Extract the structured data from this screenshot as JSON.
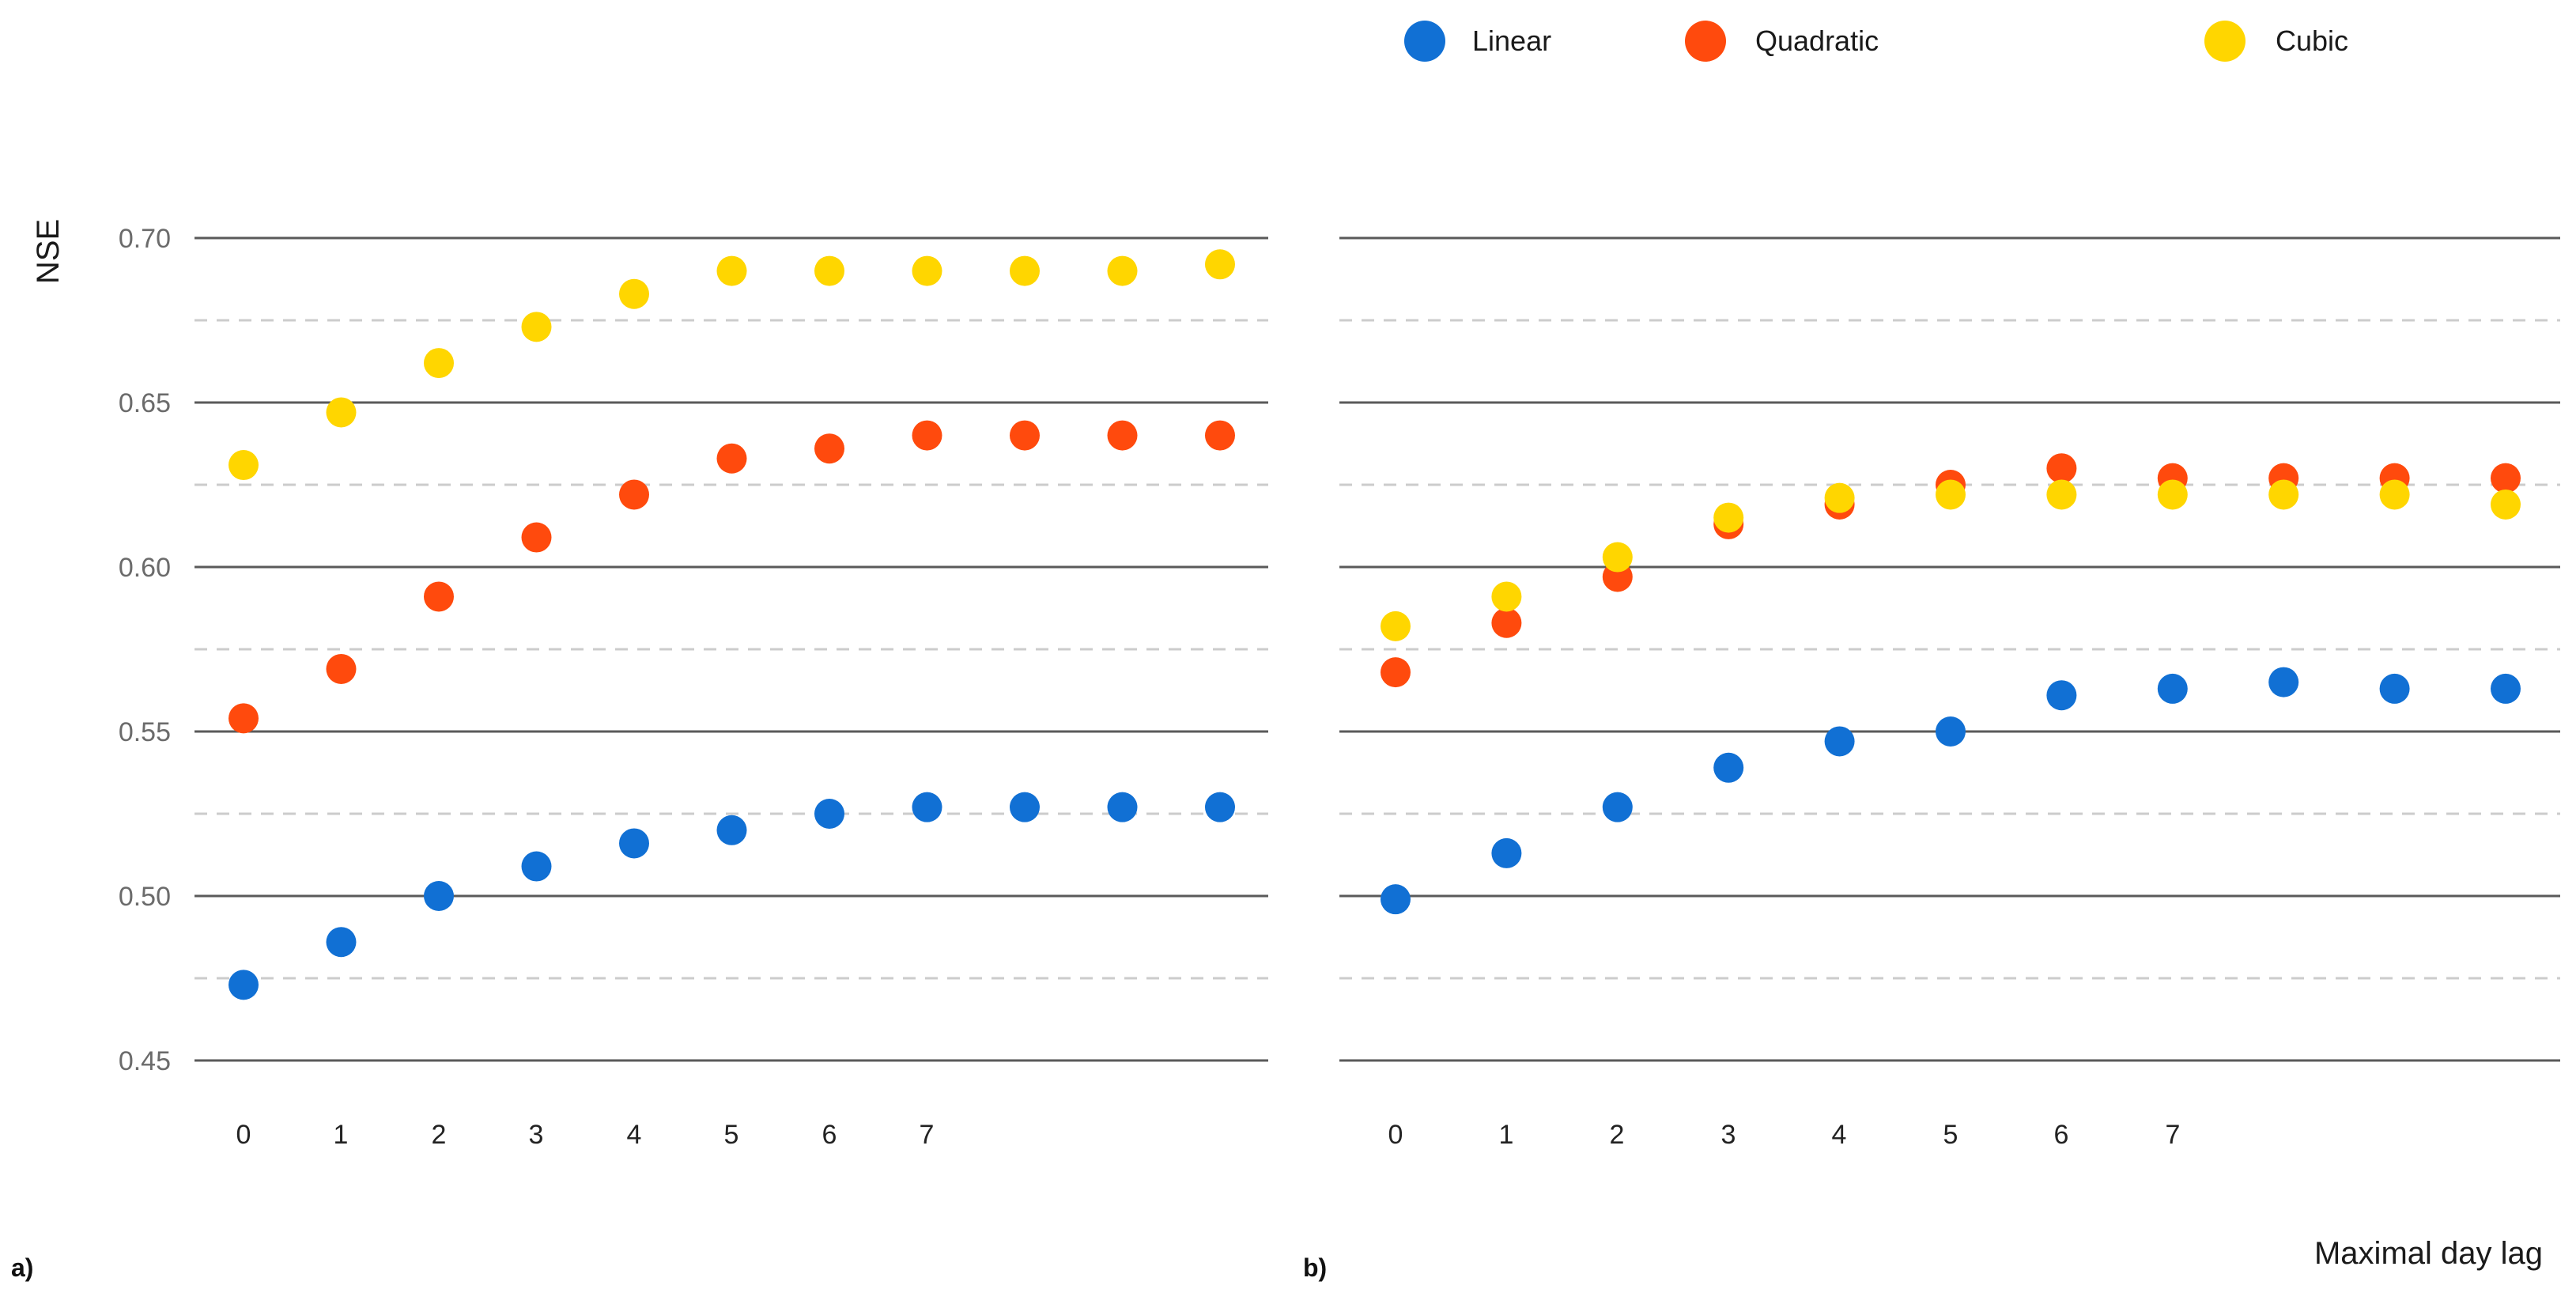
{
  "chart_data": {
    "type": "scatter",
    "ylabel": "NSE",
    "xlabel": "Maximal day lag",
    "ylim": [
      0.45,
      0.7
    ],
    "yticks": [
      "0.70",
      "0.65",
      "0.60",
      "0.55",
      "0.50",
      "0.45"
    ],
    "x_tick_labels": [
      "0",
      "1",
      "2",
      "3",
      "4",
      "5",
      "6",
      "7"
    ],
    "legend": [
      {
        "name": "Linear",
        "color": "#1170D4"
      },
      {
        "name": "Quadratic",
        "color": "#FF4A0D"
      },
      {
        "name": "Cubic",
        "color": "#FFD600"
      }
    ],
    "panels": [
      {
        "label": "a)",
        "series": [
          {
            "name": "Linear",
            "values": [
              0.473,
              0.486,
              0.5,
              0.509,
              0.516,
              0.52,
              0.525,
              0.527,
              0.527,
              0.527,
              0.527
            ]
          },
          {
            "name": "Quadratic",
            "values": [
              0.554,
              0.569,
              0.591,
              0.609,
              0.622,
              0.633,
              0.636,
              0.64,
              0.64,
              0.64,
              0.64
            ]
          },
          {
            "name": "Cubic",
            "values": [
              0.631,
              0.647,
              0.662,
              0.673,
              0.683,
              0.69,
              0.69,
              0.69,
              0.69,
              0.69,
              0.692
            ]
          }
        ]
      },
      {
        "label": "b)",
        "series": [
          {
            "name": "Linear",
            "values": [
              0.499,
              0.513,
              0.527,
              0.539,
              0.547,
              0.55,
              0.561,
              0.563,
              0.565,
              0.563,
              0.563
            ]
          },
          {
            "name": "Quadratic",
            "values": [
              0.568,
              0.583,
              0.597,
              0.613,
              0.619,
              0.625,
              0.63,
              0.627,
              0.627,
              0.627,
              0.627
            ]
          },
          {
            "name": "Cubic",
            "values": [
              0.582,
              0.591,
              0.603,
              0.615,
              0.621,
              0.622,
              0.622,
              0.622,
              0.622,
              0.622,
              0.619
            ]
          }
        ]
      }
    ]
  }
}
